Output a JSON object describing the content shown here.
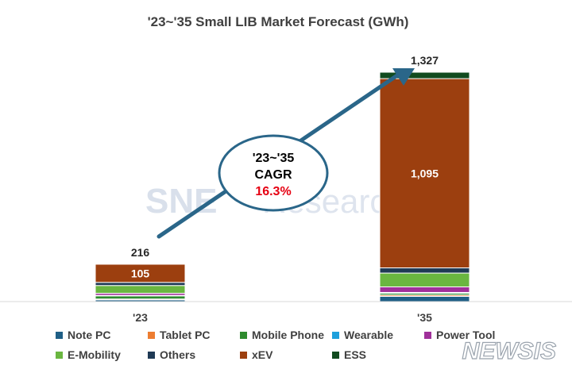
{
  "chart_data": {
    "type": "bar",
    "stacked": true,
    "title": "'23~'35 Small LIB Market Forecast (GWh)",
    "categories": [
      "'23",
      "'35"
    ],
    "totals": [
      216,
      1327
    ],
    "total_labels": [
      "216",
      "1,327"
    ],
    "series": [
      {
        "name": "Note PC",
        "color": "#1f5f86",
        "values": [
          10,
          30
        ]
      },
      {
        "name": "Tablet PC",
        "color": "#ed7d31",
        "values": [
          5,
          8
        ]
      },
      {
        "name": "Mobile Phone",
        "color": "#2e8b2e",
        "values": [
          18,
          10
        ]
      },
      {
        "name": "Wearable",
        "color": "#1ea0dc",
        "values": [
          3,
          5
        ]
      },
      {
        "name": "Power Tool",
        "color": "#a0309a",
        "values": [
          12,
          32
        ]
      },
      {
        "name": "E-Mobility",
        "color": "#6ab640",
        "values": [
          45,
          80
        ]
      },
      {
        "name": "Others",
        "color": "#1f3a55",
        "values": [
          18,
          30
        ]
      },
      {
        "name": "xEV",
        "color": "#9c3f0f",
        "values": [
          105,
          1095
        ]
      },
      {
        "name": "ESS",
        "color": "#114b1f",
        "values": [
          0,
          37
        ]
      }
    ],
    "data_labels": [
      {
        "category": "'23",
        "series": "xEV",
        "text": "105"
      },
      {
        "category": "'35",
        "series": "xEV",
        "text": "1,095"
      }
    ],
    "ylim": [
      0,
      1400
    ],
    "xlabel": "",
    "ylabel": "",
    "grid": false,
    "legend_position": "bottom"
  },
  "callout": {
    "line1": "'23~'35",
    "line2": "CAGR",
    "value": "16.3%",
    "value_color": "#e60012"
  },
  "watermark": {
    "brand": "SNE",
    "brand_suffix": "Research",
    "agency": "NEWSIS"
  },
  "colors": {
    "arrow": "#2a6689",
    "ellipse_stroke": "#2a6689",
    "axis": "#d9d9d9"
  }
}
